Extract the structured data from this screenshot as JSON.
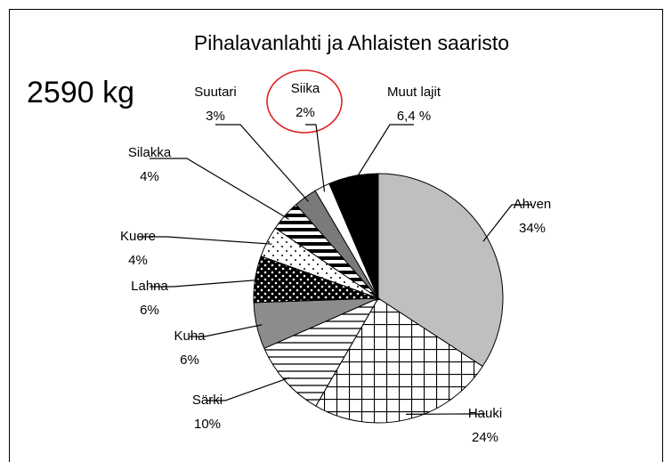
{
  "chart_data": {
    "type": "pie",
    "title": "Pihalavanlahti ja Ahlaisten saaristo",
    "annotation": "2590 kg",
    "categories": [
      "Ahven",
      "Hauki",
      "Särki",
      "Kuha",
      "Lahna",
      "Kuore",
      "Silakka",
      "Suutari",
      "Siika",
      "Muut lajit"
    ],
    "values": [
      34,
      24,
      10,
      6,
      6,
      4,
      4,
      3,
      2,
      6.4
    ],
    "value_labels": [
      "34%",
      "24%",
      "10%",
      "6%",
      "6%",
      "4%",
      "4%",
      "3%",
      "2%",
      "6,4 %"
    ]
  }
}
